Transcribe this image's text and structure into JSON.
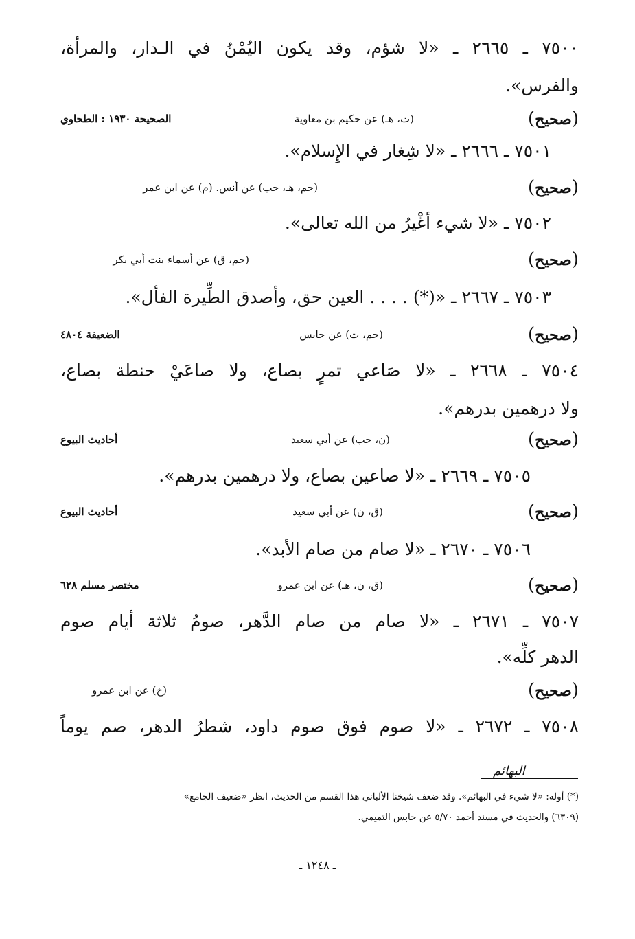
{
  "lines": [
    "٧٥٠٠ ـ ٢٦٦٥ ـ «لا شؤم، وقد يكون اليُمْنُ في الـدار، والمرأة،",
    "والفرس».",
    "٧٥٠١ ـ ٢٦٦٦ ـ «لا شِغار في الإِسلام».",
    "٧٥٠٢ ـ «لا شيء أغْيرُ من الله تعالى».",
    "٧٥٠٣ ـ ٢٦٦٧ ـ «(*) . . . . العين حق، وأصدق الطِّيرة الفأل».",
    "٧٥٠٤ ـ ٢٦٦٨ ـ «لا صَاعي تمرٍ بصاع، ولا صاعَيْ حنطة بصاع،",
    "ولا درهمين بدرهم».",
    "٧٥٠٥ ـ ٢٦٦٩ ـ «لا صاعين بصاع، ولا درهمين بدرهم».",
    "٧٥٠٦ ـ ٢٦٧٠ ـ «لا صام من صام الأبد».",
    "٧٥٠٧ ـ ٢٦٧١ ـ «لا صام من صام الدَّهر، صومُ ثلاثة أيام صوم",
    "الدهر كلِّه».",
    "٧٥٠٨ ـ ٢٦٧٢ ـ «لا صوم فوق صوم داود، شطرُ الدهر، صم يوماً"
  ],
  "gradings": [
    {
      "grade": "صحيح",
      "sources": "(ت، هـ) عن حكيم بن معاوية",
      "ref": "الصحيحة ١٩٣٠ : الطحاوي"
    },
    {
      "grade": "صحيح",
      "sources": "(حم، هـ، حب) عن أنس. (م) عن ابن عمر",
      "ref": ""
    },
    {
      "grade": "صحيح",
      "sources": "(حم، ق) عن أسماء بنت أبي بكر",
      "ref": ""
    },
    {
      "grade": "صحيح",
      "sources": "(حم، ت) عن حابس",
      "ref": "الضعيفة ٤٨٠٤"
    },
    {
      "grade": "صحيح",
      "sources": "(ن، حب) عن أبي سعيد",
      "ref": "أحاديث البيوع"
    },
    {
      "grade": "صحيح",
      "sources": "(ق، ن) عن أبي سعيد",
      "ref": "أحاديث البيوع"
    },
    {
      "grade": "صحيح",
      "sources": "(ق، ن، هـ) عن ابن عمرو",
      "ref": "مختصر مسلم ٦٢٨"
    },
    {
      "grade": "صحيح",
      "sources": "(خ) عن ابن عمرو",
      "ref": ""
    }
  ],
  "footnote": {
    "handwritten_note": "البهائم",
    "line1": "(*) أوله: «لا شيء في البهائم». وقد ضعف شيخنا الألباني هذا القسم من الحديث، انظر «ضعيف الجامع»",
    "line2": "(٦٣٠٩) والحديث في مسند أحمد ٥/٧٠ عن حابس التميمي."
  },
  "page_number": "ـ ١٢٤٨ ـ"
}
